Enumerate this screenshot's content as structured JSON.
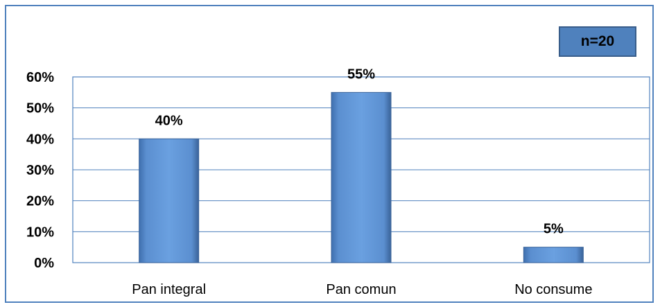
{
  "chart_data": {
    "type": "bar",
    "categories": [
      "Pan integral",
      "Pan comun",
      "No consume"
    ],
    "values": [
      40,
      55,
      5
    ],
    "data_labels": [
      "40%",
      "55%",
      "5%"
    ],
    "ylim": [
      0,
      60
    ],
    "yticks": [
      0,
      10,
      20,
      30,
      40,
      50,
      60
    ],
    "ytick_labels": [
      "0%",
      "10%",
      "20%",
      "30%",
      "40%",
      "50%",
      "60%"
    ],
    "grid": true,
    "bar_color": "#4f81bd",
    "annotation": "n=20"
  }
}
